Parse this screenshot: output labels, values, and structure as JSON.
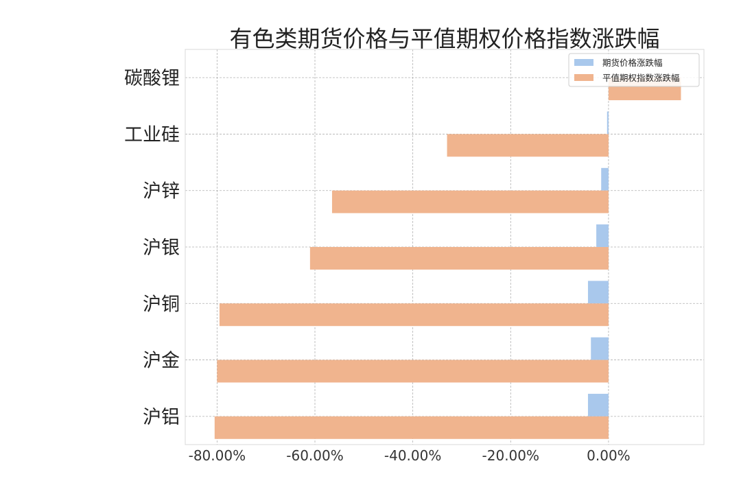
{
  "chart_data": {
    "type": "bar",
    "orientation": "horizontal",
    "title": "有色类期货价格与平值期权价格指数涨跌幅",
    "xlabel": "",
    "ylabel": "",
    "categories": [
      "碳酸锂",
      "工业硅",
      "沪锌",
      "沪银",
      "沪铜",
      "沪金",
      "沪铝"
    ],
    "series": [
      {
        "name": "期货价格涨跌幅",
        "color": "#a9c8ec",
        "values": [
          0.0,
          -0.3,
          -1.5,
          -2.5,
          -4.2,
          -3.6,
          -4.2
        ]
      },
      {
        "name": "平值期权指数涨跌幅",
        "color": "#f0b48e",
        "values": [
          14.8,
          -33.0,
          -56.5,
          -61.0,
          -79.5,
          -80.0,
          -80.5
        ]
      }
    ],
    "xlim": [
      -86.5,
      19.5
    ],
    "xticks": [
      -80,
      -60,
      -40,
      -20,
      0
    ],
    "xtick_labels": [
      "-80.00%",
      "-60.00%",
      "-40.00%",
      "-20.00%",
      "0.00%"
    ],
    "grid": true,
    "legend_position": "top-right"
  }
}
